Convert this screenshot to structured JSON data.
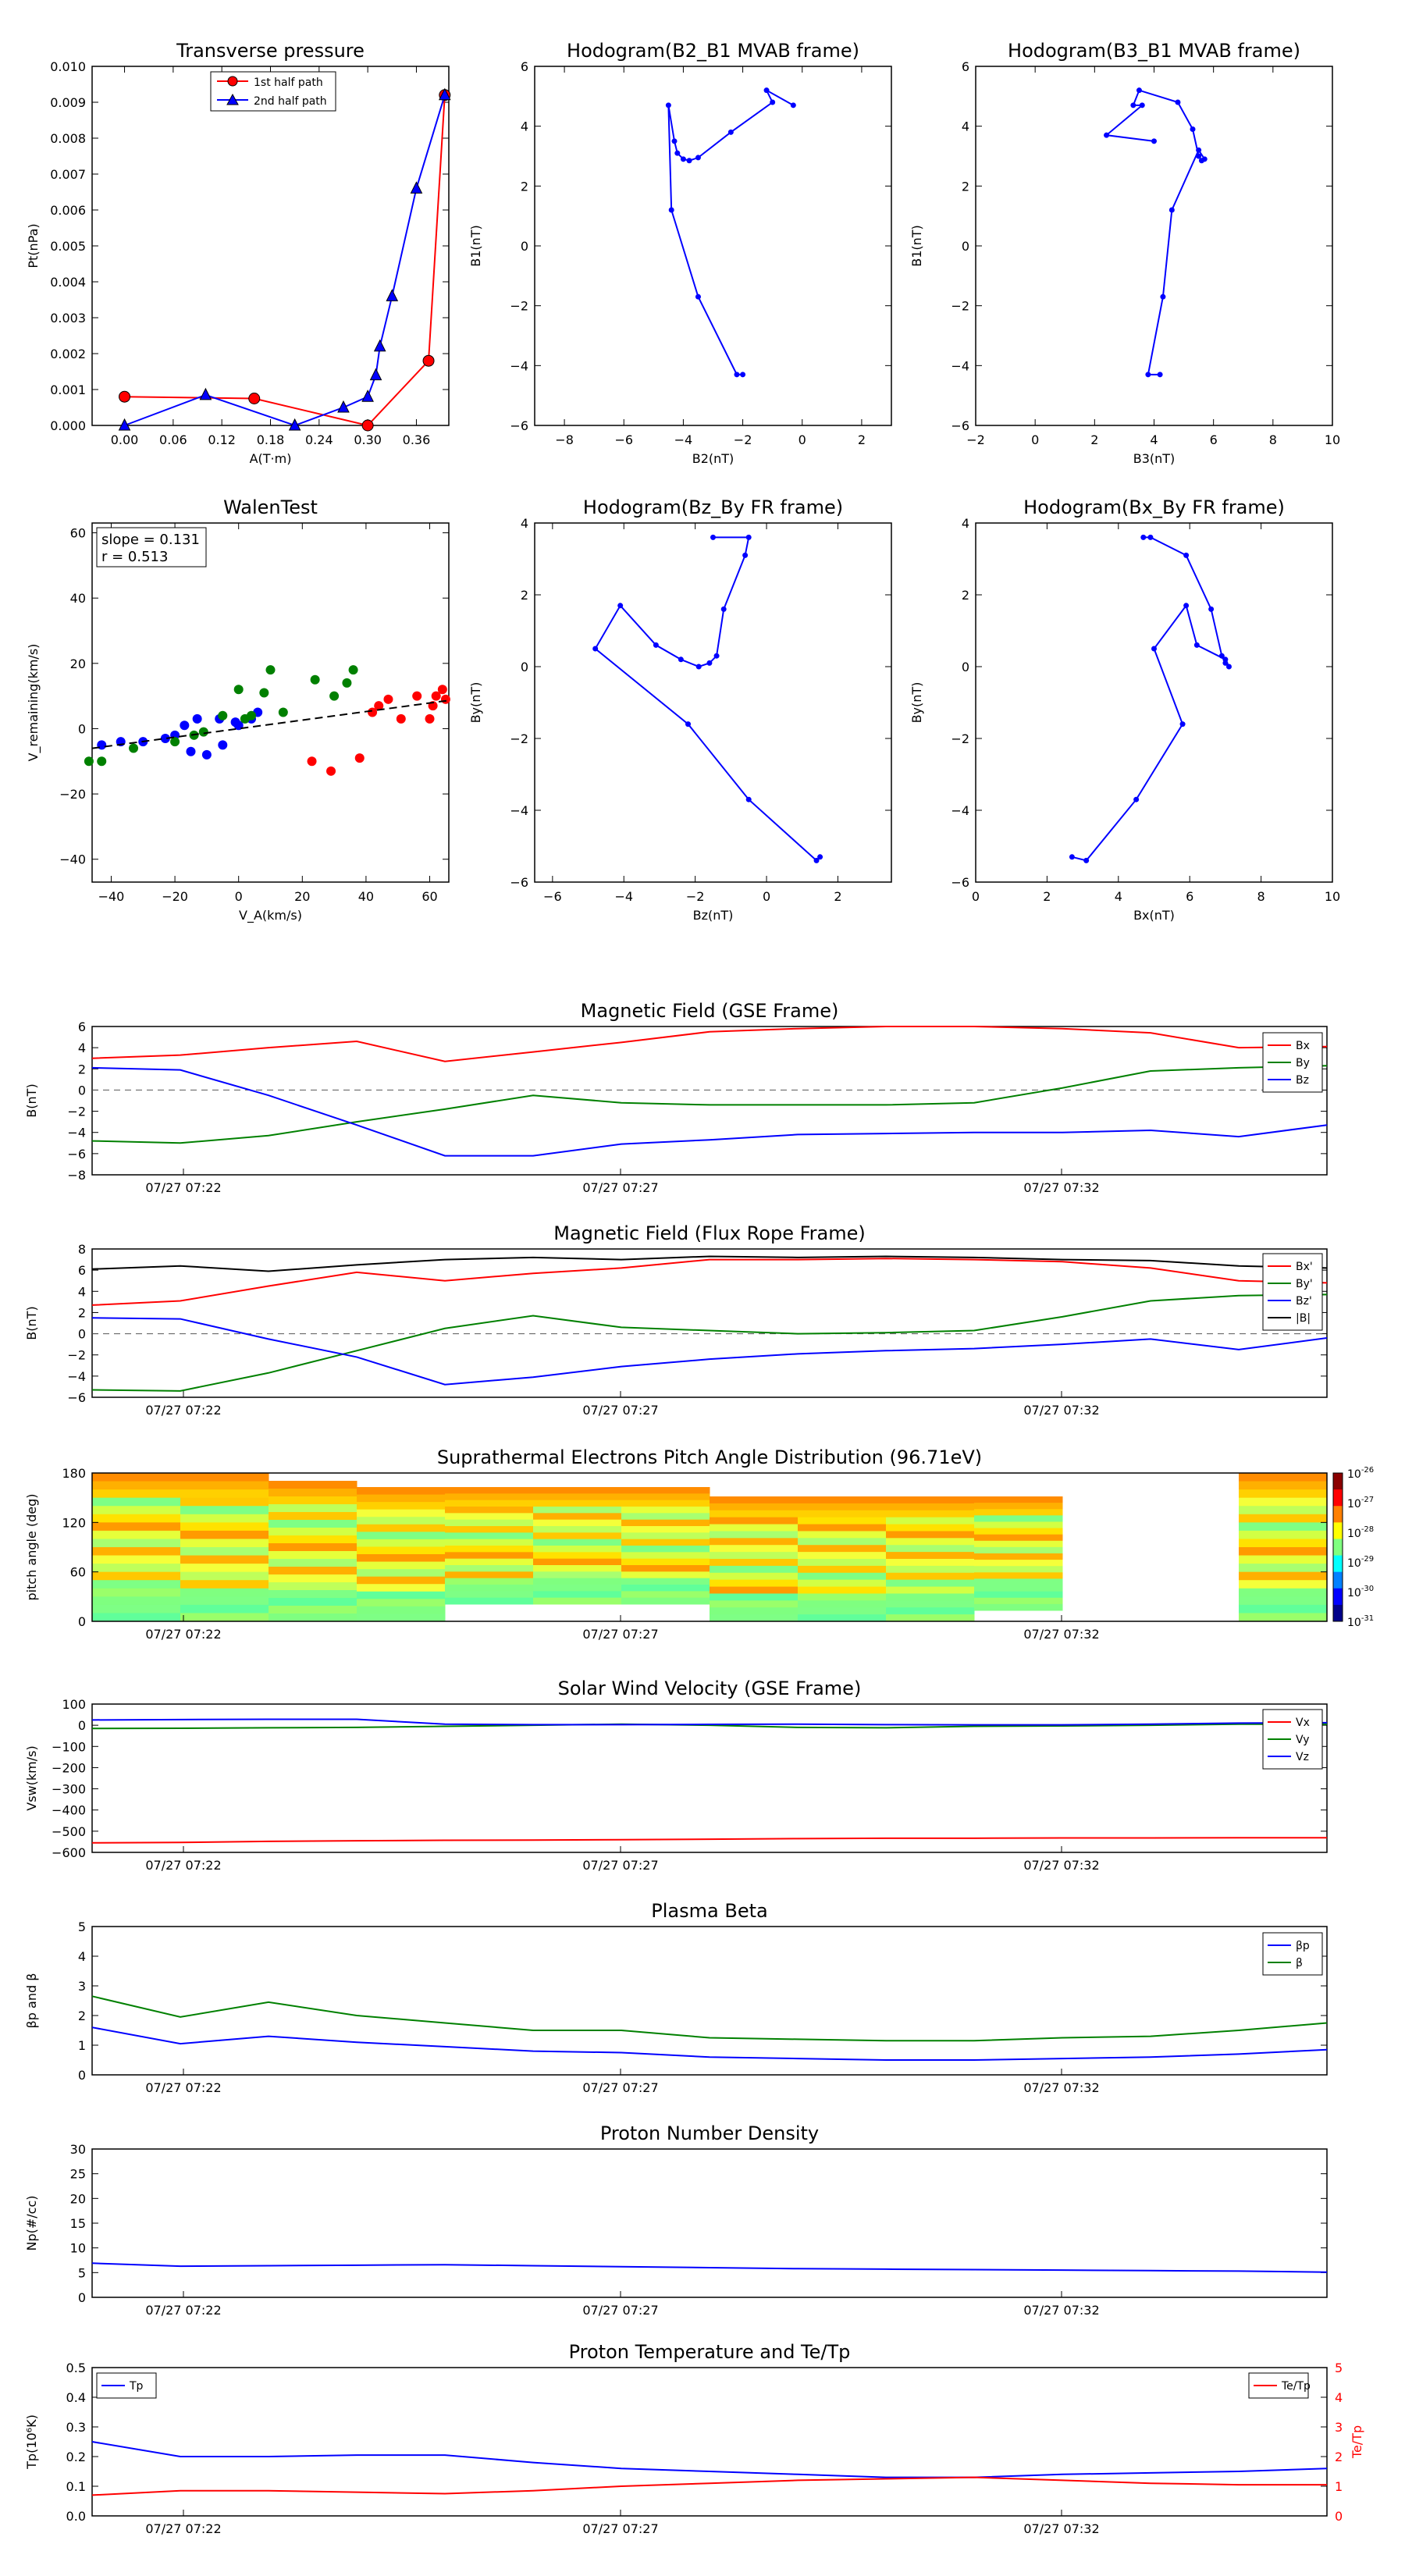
{
  "panels": {
    "tp": {
      "title": "Transverse pressure",
      "xlabel": "A(T·m)",
      "ylabel": "Pt(nPa)",
      "xticks": [
        "0.00",
        "0.06",
        "0.12",
        "0.18",
        "0.24",
        "0.30",
        "0.36"
      ],
      "yticks": [
        "0.000",
        "0.001",
        "0.002",
        "0.003",
        "0.004",
        "0.005",
        "0.006",
        "0.007",
        "0.008",
        "0.009",
        "0.010"
      ],
      "legend": [
        "1st half path",
        "2nd half path"
      ]
    },
    "h1": {
      "title": "Hodogram(B2_B1 MVAB frame)",
      "xlabel": "B2(nT)",
      "ylabel": "B1(nT)",
      "xticks": [
        "−8",
        "−6",
        "−4",
        "−2",
        "0",
        "2"
      ],
      "yticks": [
        "−6",
        "−4",
        "−2",
        "0",
        "2",
        "4",
        "6"
      ]
    },
    "h2": {
      "title": "Hodogram(B3_B1 MVAB frame)",
      "xlabel": "B3(nT)",
      "ylabel": "B1(nT)",
      "xticks": [
        "−2",
        "0",
        "2",
        "4",
        "6",
        "8",
        "10"
      ],
      "yticks": [
        "−6",
        "−4",
        "−2",
        "0",
        "2",
        "4",
        "6"
      ]
    },
    "walen": {
      "title": "WalenTest",
      "xlabel": "V_A(km/s)",
      "ylabel": "V_remaining(km/s)",
      "xticks": [
        "−40",
        "−20",
        "0",
        "20",
        "40",
        "60"
      ],
      "yticks": [
        "−40",
        "−20",
        "0",
        "20",
        "40",
        "60"
      ],
      "annot1": "slope = 0.131",
      "annot2": "r = 0.513"
    },
    "h3": {
      "title": "Hodogram(Bz_By FR frame)",
      "xlabel": "Bz(nT)",
      "ylabel": "By(nT)",
      "xticks": [
        "−6",
        "−4",
        "−2",
        "0",
        "2"
      ],
      "yticks": [
        "−6",
        "−4",
        "−2",
        "0",
        "2",
        "4"
      ]
    },
    "h4": {
      "title": "Hodogram(Bx_By FR frame)",
      "xlabel": "Bx(nT)",
      "ylabel": "By(nT)",
      "xticks": [
        "0",
        "2",
        "4",
        "6",
        "8",
        "10"
      ],
      "yticks": [
        "−6",
        "−4",
        "−2",
        "0",
        "2",
        "4"
      ]
    }
  },
  "time_ticks": [
    "07/27 07:22",
    "07/27 07:27",
    "07/27 07:32"
  ],
  "strips": {
    "mag_gse": {
      "title": "Magnetic Field (GSE Frame)",
      "ylabel": "B(nT)",
      "yticks": [
        "−8",
        "−6",
        "−4",
        "−2",
        "0",
        "2",
        "4",
        "6"
      ],
      "legend": [
        "Bx",
        "By",
        "Bz"
      ]
    },
    "mag_fr": {
      "title": "Magnetic Field (Flux Rope Frame)",
      "ylabel": "B(nT)",
      "yticks": [
        "−6",
        "−4",
        "−2",
        "0",
        "2",
        "4",
        "6",
        "8"
      ],
      "legend": [
        "Bx'",
        "By'",
        "Bz'",
        "|B|"
      ]
    },
    "pad": {
      "title": "Suprathermal Electrons Pitch Angle Distribution (96.71eV)",
      "ylabel": "pitch angle (deg)",
      "yticks": [
        "0",
        "60",
        "120",
        "180"
      ],
      "cbar_ticks": [
        "-26",
        "-27",
        "-28",
        "-29",
        "-30",
        "-31"
      ]
    },
    "vsw": {
      "title": "Solar Wind Velocity (GSE Frame)",
      "ylabel": "Vsw(km/s)",
      "yticks": [
        "−600",
        "−500",
        "−400",
        "−300",
        "−200",
        "−100",
        "0",
        "100"
      ],
      "legend": [
        "Vx",
        "Vy",
        "Vz"
      ]
    },
    "beta": {
      "title": "Plasma Beta",
      "ylabel": "βp and β",
      "yticks": [
        "0",
        "1",
        "2",
        "3",
        "4",
        "5"
      ],
      "legend": [
        "βp",
        "β"
      ]
    },
    "np": {
      "title": "Proton Number Density",
      "ylabel": "Np(#/cc)",
      "yticks": [
        "0",
        "5",
        "10",
        "15",
        "20",
        "25",
        "30"
      ]
    },
    "temp": {
      "title": "Proton Temperature and Te/Tp",
      "ylabel": "Tp(10⁶K)",
      "ylabel2": "Te/Tp",
      "yticks": [
        "0.0",
        "0.1",
        "0.2",
        "0.3",
        "0.4",
        "0.5"
      ],
      "yticks2": [
        "0",
        "1",
        "2",
        "3",
        "4",
        "5"
      ],
      "legend": [
        "Tp"
      ],
      "legend2": [
        "Te/Tp"
      ]
    }
  },
  "colors": {
    "red": "#ff0000",
    "green": "#008000",
    "blue": "#0000ff",
    "black": "#000000"
  },
  "chart_data": [
    {
      "type": "line",
      "id": "tp",
      "title": "Transverse pressure",
      "xlabel": "A(T·m)",
      "ylabel": "Pt(nPa)",
      "xlim": [
        -0.04,
        0.4
      ],
      "ylim": [
        0,
        0.01
      ],
      "series": [
        {
          "name": "1st half path",
          "x": [
            0.0,
            0.16,
            0.3,
            0.375,
            0.395
          ],
          "y": [
            0.0008,
            0.00075,
            0.0,
            0.0018,
            0.0092
          ]
        },
        {
          "name": "2nd half path",
          "x": [
            0.0,
            0.1,
            0.21,
            0.27,
            0.3,
            0.31,
            0.315,
            0.33,
            0.36,
            0.395
          ],
          "y": [
            0.0,
            0.00085,
            0.0,
            0.0005,
            0.0008,
            0.0014,
            0.0022,
            0.0036,
            0.0066,
            0.0092
          ]
        }
      ]
    },
    {
      "type": "line",
      "id": "h1",
      "title": "Hodogram(B2_B1 MVAB frame)",
      "xlim": [
        -9,
        3
      ],
      "ylim": [
        -6,
        6
      ],
      "series": [
        {
          "x": [
            -2.0,
            -2.2,
            -3.5,
            -4.4,
            -4.5,
            -4.3,
            -4.2,
            -4.0,
            -3.8,
            -3.5,
            -2.4,
            -1.0,
            -1.2,
            -0.3
          ],
          "y": [
            -4.3,
            -4.3,
            -1.7,
            1.2,
            4.7,
            3.5,
            3.1,
            2.9,
            2.85,
            2.95,
            3.8,
            4.8,
            5.2,
            4.7
          ]
        }
      ]
    },
    {
      "type": "line",
      "id": "h2",
      "title": "Hodogram(B3_B1 MVAB frame)",
      "xlim": [
        -2,
        10
      ],
      "ylim": [
        -6,
        6
      ],
      "series": [
        {
          "x": [
            4.2,
            3.8,
            4.3,
            4.6,
            5.5,
            5.7,
            5.6,
            5.5,
            5.3,
            4.8,
            3.5,
            3.3,
            3.6,
            2.4,
            4.0
          ],
          "y": [
            -4.3,
            -4.3,
            -1.7,
            1.2,
            3.2,
            2.9,
            2.85,
            3.0,
            3.9,
            4.8,
            5.2,
            4.7,
            4.7,
            3.7,
            3.5
          ]
        }
      ]
    },
    {
      "type": "scatter",
      "id": "walen",
      "title": "WalenTest",
      "xlim": [
        -46,
        66
      ],
      "ylim": [
        -47,
        63
      ],
      "slope": 0.131,
      "r": 0.513,
      "series": [
        {
          "color": "blue",
          "x": [
            -43,
            -37,
            -30,
            -23,
            -20,
            -17,
            -15,
            -13,
            -10,
            -6,
            -5,
            -1,
            0,
            4,
            6
          ],
          "y": [
            -5,
            -4,
            -4,
            -3,
            -2,
            1,
            -7,
            3,
            -8,
            3,
            -5,
            2,
            1,
            3,
            5
          ]
        },
        {
          "color": "green",
          "x": [
            -47,
            -43,
            -33,
            -20,
            -14,
            -11,
            -5,
            0,
            2,
            4,
            8,
            10,
            14,
            24,
            30,
            34,
            36
          ],
          "y": [
            -10,
            -10,
            -6,
            -4,
            -2,
            -1,
            4,
            12,
            3,
            4,
            11,
            18,
            5,
            15,
            10,
            14,
            18
          ]
        },
        {
          "color": "red",
          "x": [
            23,
            29,
            38,
            42,
            44,
            47,
            51,
            56,
            60,
            61,
            62,
            64,
            65
          ],
          "y": [
            -10,
            -13,
            -9,
            5,
            7,
            9,
            3,
            10,
            3,
            7,
            10,
            12,
            9
          ]
        }
      ]
    },
    {
      "type": "line",
      "id": "h3",
      "title": "Hodogram(Bz_By FR frame)",
      "xlim": [
        -6.5,
        3.5
      ],
      "ylim": [
        -6,
        4
      ],
      "series": [
        {
          "x": [
            1.5,
            1.4,
            -0.5,
            -2.2,
            -4.8,
            -4.1,
            -3.1,
            -2.4,
            -1.9,
            -1.6,
            -1.4,
            -1.2,
            -0.6,
            -0.5,
            -1.5
          ],
          "y": [
            -5.3,
            -5.4,
            -3.7,
            -1.6,
            0.5,
            1.7,
            0.6,
            0.2,
            0.0,
            0.1,
            0.3,
            1.6,
            3.1,
            3.6,
            3.6
          ]
        }
      ]
    },
    {
      "type": "line",
      "id": "h4",
      "title": "Hodogram(Bx_By FR frame)",
      "xlim": [
        0,
        10
      ],
      "ylim": [
        -6,
        4
      ],
      "series": [
        {
          "x": [
            2.7,
            3.1,
            4.5,
            5.8,
            5.0,
            5.9,
            6.2,
            7.0,
            7.1,
            7.0,
            6.9,
            6.6,
            5.9,
            4.9,
            4.7
          ],
          "y": [
            -5.3,
            -5.4,
            -3.7,
            -1.6,
            0.5,
            1.7,
            0.6,
            0.2,
            0.0,
            0.1,
            0.3,
            1.6,
            3.1,
            3.6,
            3.6
          ]
        }
      ]
    },
    {
      "type": "line",
      "id": "mag_gse",
      "title": "Magnetic Field (GSE Frame)",
      "xlim": [
        0,
        14
      ],
      "ylim": [
        -8,
        6
      ],
      "x": [
        0,
        1,
        2,
        3,
        4,
        5,
        6,
        7,
        8,
        9,
        10,
        11,
        12,
        13,
        14
      ],
      "series": [
        {
          "name": "Bx",
          "color": "red",
          "values": [
            3.0,
            3.3,
            4.0,
            4.6,
            2.7,
            3.6,
            4.5,
            5.5,
            5.8,
            6.0,
            6.0,
            5.8,
            5.4,
            4.0,
            4.1
          ]
        },
        {
          "name": "By",
          "color": "green",
          "values": [
            -4.8,
            -5.0,
            -4.3,
            -3.0,
            -1.8,
            -0.5,
            -1.2,
            -1.4,
            -1.4,
            -1.4,
            -1.2,
            0.2,
            1.8,
            2.1,
            2.3
          ]
        },
        {
          "name": "Bz",
          "color": "blue",
          "values": [
            2.1,
            1.9,
            -0.5,
            -3.3,
            -6.2,
            -6.2,
            -5.1,
            -4.7,
            -4.2,
            -4.1,
            -4.0,
            -4.0,
            -3.8,
            -4.4,
            -3.3
          ]
        }
      ]
    },
    {
      "type": "line",
      "id": "mag_fr",
      "title": "Magnetic Field (Flux Rope Frame)",
      "xlim": [
        0,
        14
      ],
      "ylim": [
        -6,
        8
      ],
      "x": [
        0,
        1,
        2,
        3,
        4,
        5,
        6,
        7,
        8,
        9,
        10,
        11,
        12,
        13,
        14
      ],
      "series": [
        {
          "name": "Bx'",
          "color": "red",
          "values": [
            2.7,
            3.1,
            4.5,
            5.8,
            5.0,
            5.7,
            6.2,
            7.0,
            7.0,
            7.1,
            7.0,
            6.8,
            6.2,
            5.0,
            4.8
          ]
        },
        {
          "name": "By'",
          "color": "green",
          "values": [
            -5.3,
            -5.4,
            -3.7,
            -1.6,
            0.5,
            1.7,
            0.6,
            0.3,
            0.0,
            0.1,
            0.3,
            1.6,
            3.1,
            3.6,
            3.7
          ]
        },
        {
          "name": "Bz'",
          "color": "blue",
          "values": [
            1.5,
            1.4,
            -0.5,
            -2.2,
            -4.8,
            -4.1,
            -3.1,
            -2.4,
            -1.9,
            -1.6,
            -1.4,
            -1.0,
            -0.5,
            -1.5,
            -0.4
          ]
        },
        {
          "name": "|B|",
          "color": "black",
          "values": [
            6.1,
            6.4,
            5.9,
            6.5,
            7.0,
            7.2,
            7.0,
            7.3,
            7.2,
            7.3,
            7.2,
            7.0,
            6.9,
            6.4,
            6.2
          ]
        }
      ]
    },
    {
      "type": "heatmap",
      "id": "pad",
      "title": "Suprathermal Electrons Pitch Angle Distribution (96.71eV)",
      "ylim": [
        0,
        180
      ],
      "clim_exponent": [
        -31,
        -26
      ]
    },
    {
      "type": "line",
      "id": "vsw",
      "title": "Solar Wind Velocity (GSE Frame)",
      "xlim": [
        0,
        14
      ],
      "ylim": [
        -600,
        100
      ],
      "x": [
        0,
        1,
        2,
        3,
        4,
        5,
        6,
        7,
        8,
        9,
        10,
        11,
        12,
        13,
        14
      ],
      "series": [
        {
          "name": "Vx",
          "color": "red",
          "values": [
            -555,
            -553,
            -548,
            -545,
            -543,
            -542,
            -540,
            -538,
            -535,
            -533,
            -533,
            -532,
            -532,
            -531,
            -531
          ]
        },
        {
          "name": "Vy",
          "color": "green",
          "values": [
            -15,
            -14,
            -12,
            -10,
            -5,
            0,
            5,
            0,
            -10,
            -12,
            -5,
            -3,
            0,
            5,
            5
          ]
        },
        {
          "name": "Vz",
          "color": "blue",
          "values": [
            25,
            27,
            28,
            28,
            5,
            3,
            3,
            4,
            5,
            3,
            2,
            2,
            5,
            10,
            12
          ]
        }
      ]
    },
    {
      "type": "line",
      "id": "beta",
      "title": "Plasma Beta",
      "xlim": [
        0,
        14
      ],
      "ylim": [
        0,
        5
      ],
      "x": [
        0,
        1,
        2,
        3,
        4,
        5,
        6,
        7,
        8,
        9,
        10,
        11,
        12,
        13,
        14
      ],
      "series": [
        {
          "name": "βp",
          "color": "blue",
          "values": [
            1.6,
            1.05,
            1.3,
            1.1,
            0.95,
            0.8,
            0.75,
            0.6,
            0.55,
            0.5,
            0.5,
            0.55,
            0.6,
            0.7,
            0.85
          ]
        },
        {
          "name": "β",
          "color": "green",
          "values": [
            2.65,
            1.95,
            2.45,
            2.0,
            1.75,
            1.5,
            1.5,
            1.25,
            1.2,
            1.15,
            1.15,
            1.25,
            1.3,
            1.5,
            1.75
          ]
        }
      ]
    },
    {
      "type": "line",
      "id": "np",
      "title": "Proton Number Density",
      "xlim": [
        0,
        14
      ],
      "ylim": [
        0,
        30
      ],
      "x": [
        0,
        1,
        2,
        3,
        4,
        5,
        6,
        7,
        8,
        9,
        10,
        11,
        12,
        13,
        14
      ],
      "series": [
        {
          "color": "blue",
          "values": [
            6.9,
            6.3,
            6.4,
            6.5,
            6.6,
            6.4,
            6.2,
            6.0,
            5.8,
            5.7,
            5.6,
            5.5,
            5.4,
            5.3,
            5.1
          ]
        }
      ]
    },
    {
      "type": "line",
      "id": "temp",
      "title": "Proton Temperature and Te/Tp",
      "xlim": [
        0,
        14
      ],
      "ylim": [
        0,
        0.5
      ],
      "ylim2": [
        0,
        5
      ],
      "x": [
        0,
        1,
        2,
        3,
        4,
        5,
        6,
        7,
        8,
        9,
        10,
        11,
        12,
        13,
        14
      ],
      "series": [
        {
          "name": "Tp",
          "color": "blue",
          "values": [
            0.25,
            0.2,
            0.2,
            0.205,
            0.205,
            0.18,
            0.16,
            0.15,
            0.14,
            0.13,
            0.13,
            0.14,
            0.145,
            0.15,
            0.16
          ]
        },
        {
          "name": "Te/Tp",
          "color": "red",
          "axis": "right",
          "values": [
            0.7,
            0.85,
            0.85,
            0.8,
            0.75,
            0.85,
            1.0,
            1.1,
            1.2,
            1.25,
            1.3,
            1.2,
            1.1,
            1.05,
            1.05
          ]
        }
      ]
    }
  ]
}
